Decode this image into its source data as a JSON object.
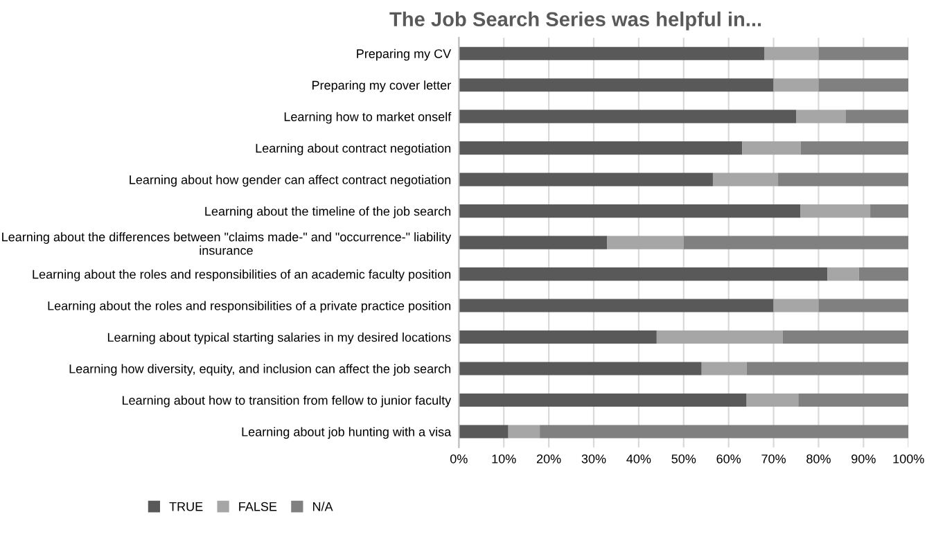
{
  "chart_data": {
    "type": "bar",
    "orientation": "horizontal",
    "stacked": true,
    "title": "The Job Search Series was helpful in...",
    "categories": [
      "Preparing my CV",
      "Preparing my cover letter",
      "Learning how to market onself",
      "Learning about contract negotiation",
      "Learning about how gender can affect contract negotiation",
      "Learning about the timeline of the job search",
      "Learning about the differences between \"claims made-\" and \"occurrence-\" liability insurance",
      "Learning about the roles and responsibilities of an academic faculty position",
      "Learning about the roles and responsibilities of a private practice position",
      "Learning about typical starting salaries in my desired locations",
      "Learning how diversity, equity, and inclusion can affect the job search",
      "Learning about how to transition from fellow to junior faculty",
      "Learning about job hunting with a visa"
    ],
    "series": [
      {
        "name": "TRUE",
        "color": "#595959",
        "values": [
          68,
          70,
          75,
          63,
          56.5,
          76,
          33,
          82,
          70,
          44,
          54,
          64,
          11
        ]
      },
      {
        "name": "FALSE",
        "color": "#a6a6a6",
        "values": [
          12,
          10,
          11,
          13,
          14.5,
          15.5,
          17,
          7,
          10,
          28,
          10,
          11.5,
          7
        ]
      },
      {
        "name": "N/A",
        "color": "#808080",
        "values": [
          20,
          20,
          14,
          24,
          29,
          8.5,
          50,
          11,
          20,
          28,
          36,
          24.5,
          82
        ]
      }
    ],
    "xlim": [
      0,
      100
    ],
    "xticks": [
      {
        "value": 0,
        "label": "0%"
      },
      {
        "value": 10,
        "label": "10%"
      },
      {
        "value": 20,
        "label": "20%"
      },
      {
        "value": 30,
        "label": "30%"
      },
      {
        "value": 40,
        "label": "40%"
      },
      {
        "value": 50,
        "label": "50%"
      },
      {
        "value": 60,
        "label": "60%"
      },
      {
        "value": 70,
        "label": "70%"
      },
      {
        "value": 80,
        "label": "80%"
      },
      {
        "value": 90,
        "label": "90%"
      },
      {
        "value": 100,
        "label": "100%"
      }
    ],
    "grid": "x",
    "legend": "bottom"
  }
}
